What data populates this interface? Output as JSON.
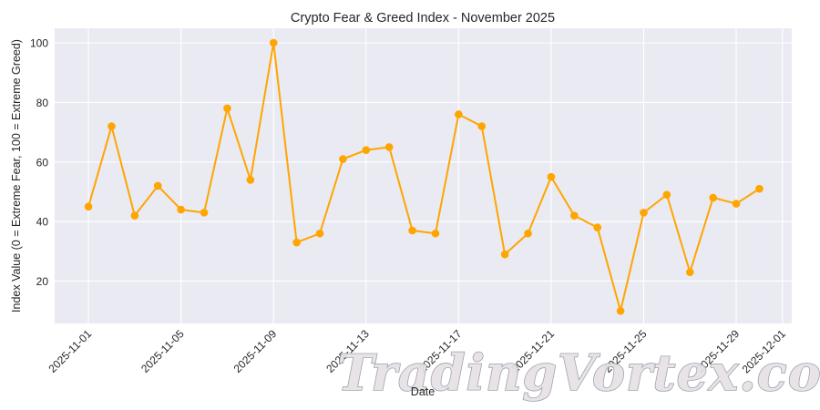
{
  "chart_data": {
    "type": "line",
    "title": "Crypto Fear & Greed Index - November 2025",
    "xlabel": "Date",
    "ylabel": "Index Value (0 = Extreme Fear, 100 = Extreme Greed)",
    "x": [
      "2025-11-01",
      "2025-11-02",
      "2025-11-03",
      "2025-11-04",
      "2025-11-05",
      "2025-11-06",
      "2025-11-07",
      "2025-11-08",
      "2025-11-09",
      "2025-11-10",
      "2025-11-11",
      "2025-11-12",
      "2025-11-13",
      "2025-11-14",
      "2025-11-15",
      "2025-11-16",
      "2025-11-17",
      "2025-11-18",
      "2025-11-19",
      "2025-11-20",
      "2025-11-21",
      "2025-11-22",
      "2025-11-23",
      "2025-11-24",
      "2025-11-25",
      "2025-11-26",
      "2025-11-27",
      "2025-11-28",
      "2025-11-29",
      "2025-11-30"
    ],
    "series": [
      {
        "name": "Fear & Greed Index",
        "color": "#FFA500",
        "marker": "circle",
        "values": [
          45,
          72,
          42,
          52,
          44,
          43,
          78,
          54,
          100,
          33,
          36,
          61,
          64,
          65,
          37,
          36,
          76,
          72,
          29,
          36,
          55,
          42,
          38,
          10,
          43,
          49,
          23,
          48,
          46,
          51
        ]
      }
    ],
    "xticks": [
      "2025-11-01",
      "2025-11-05",
      "2025-11-09",
      "2025-11-13",
      "2025-11-17",
      "2025-11-21",
      "2025-11-25",
      "2025-11-29",
      "2025-12-01"
    ],
    "yticks": [
      20,
      40,
      60,
      80,
      100
    ],
    "ylim": [
      5.8,
      104.9
    ],
    "xlim_days_from_start": [
      -1.46,
      30.4
    ],
    "grid": true,
    "legend": null,
    "style": {
      "plot_bg": "#EAEAF2",
      "grid_color": "#FFFFFF",
      "line_color": "#FFA500"
    }
  },
  "watermark": {
    "text": "TradingVortex.com"
  }
}
